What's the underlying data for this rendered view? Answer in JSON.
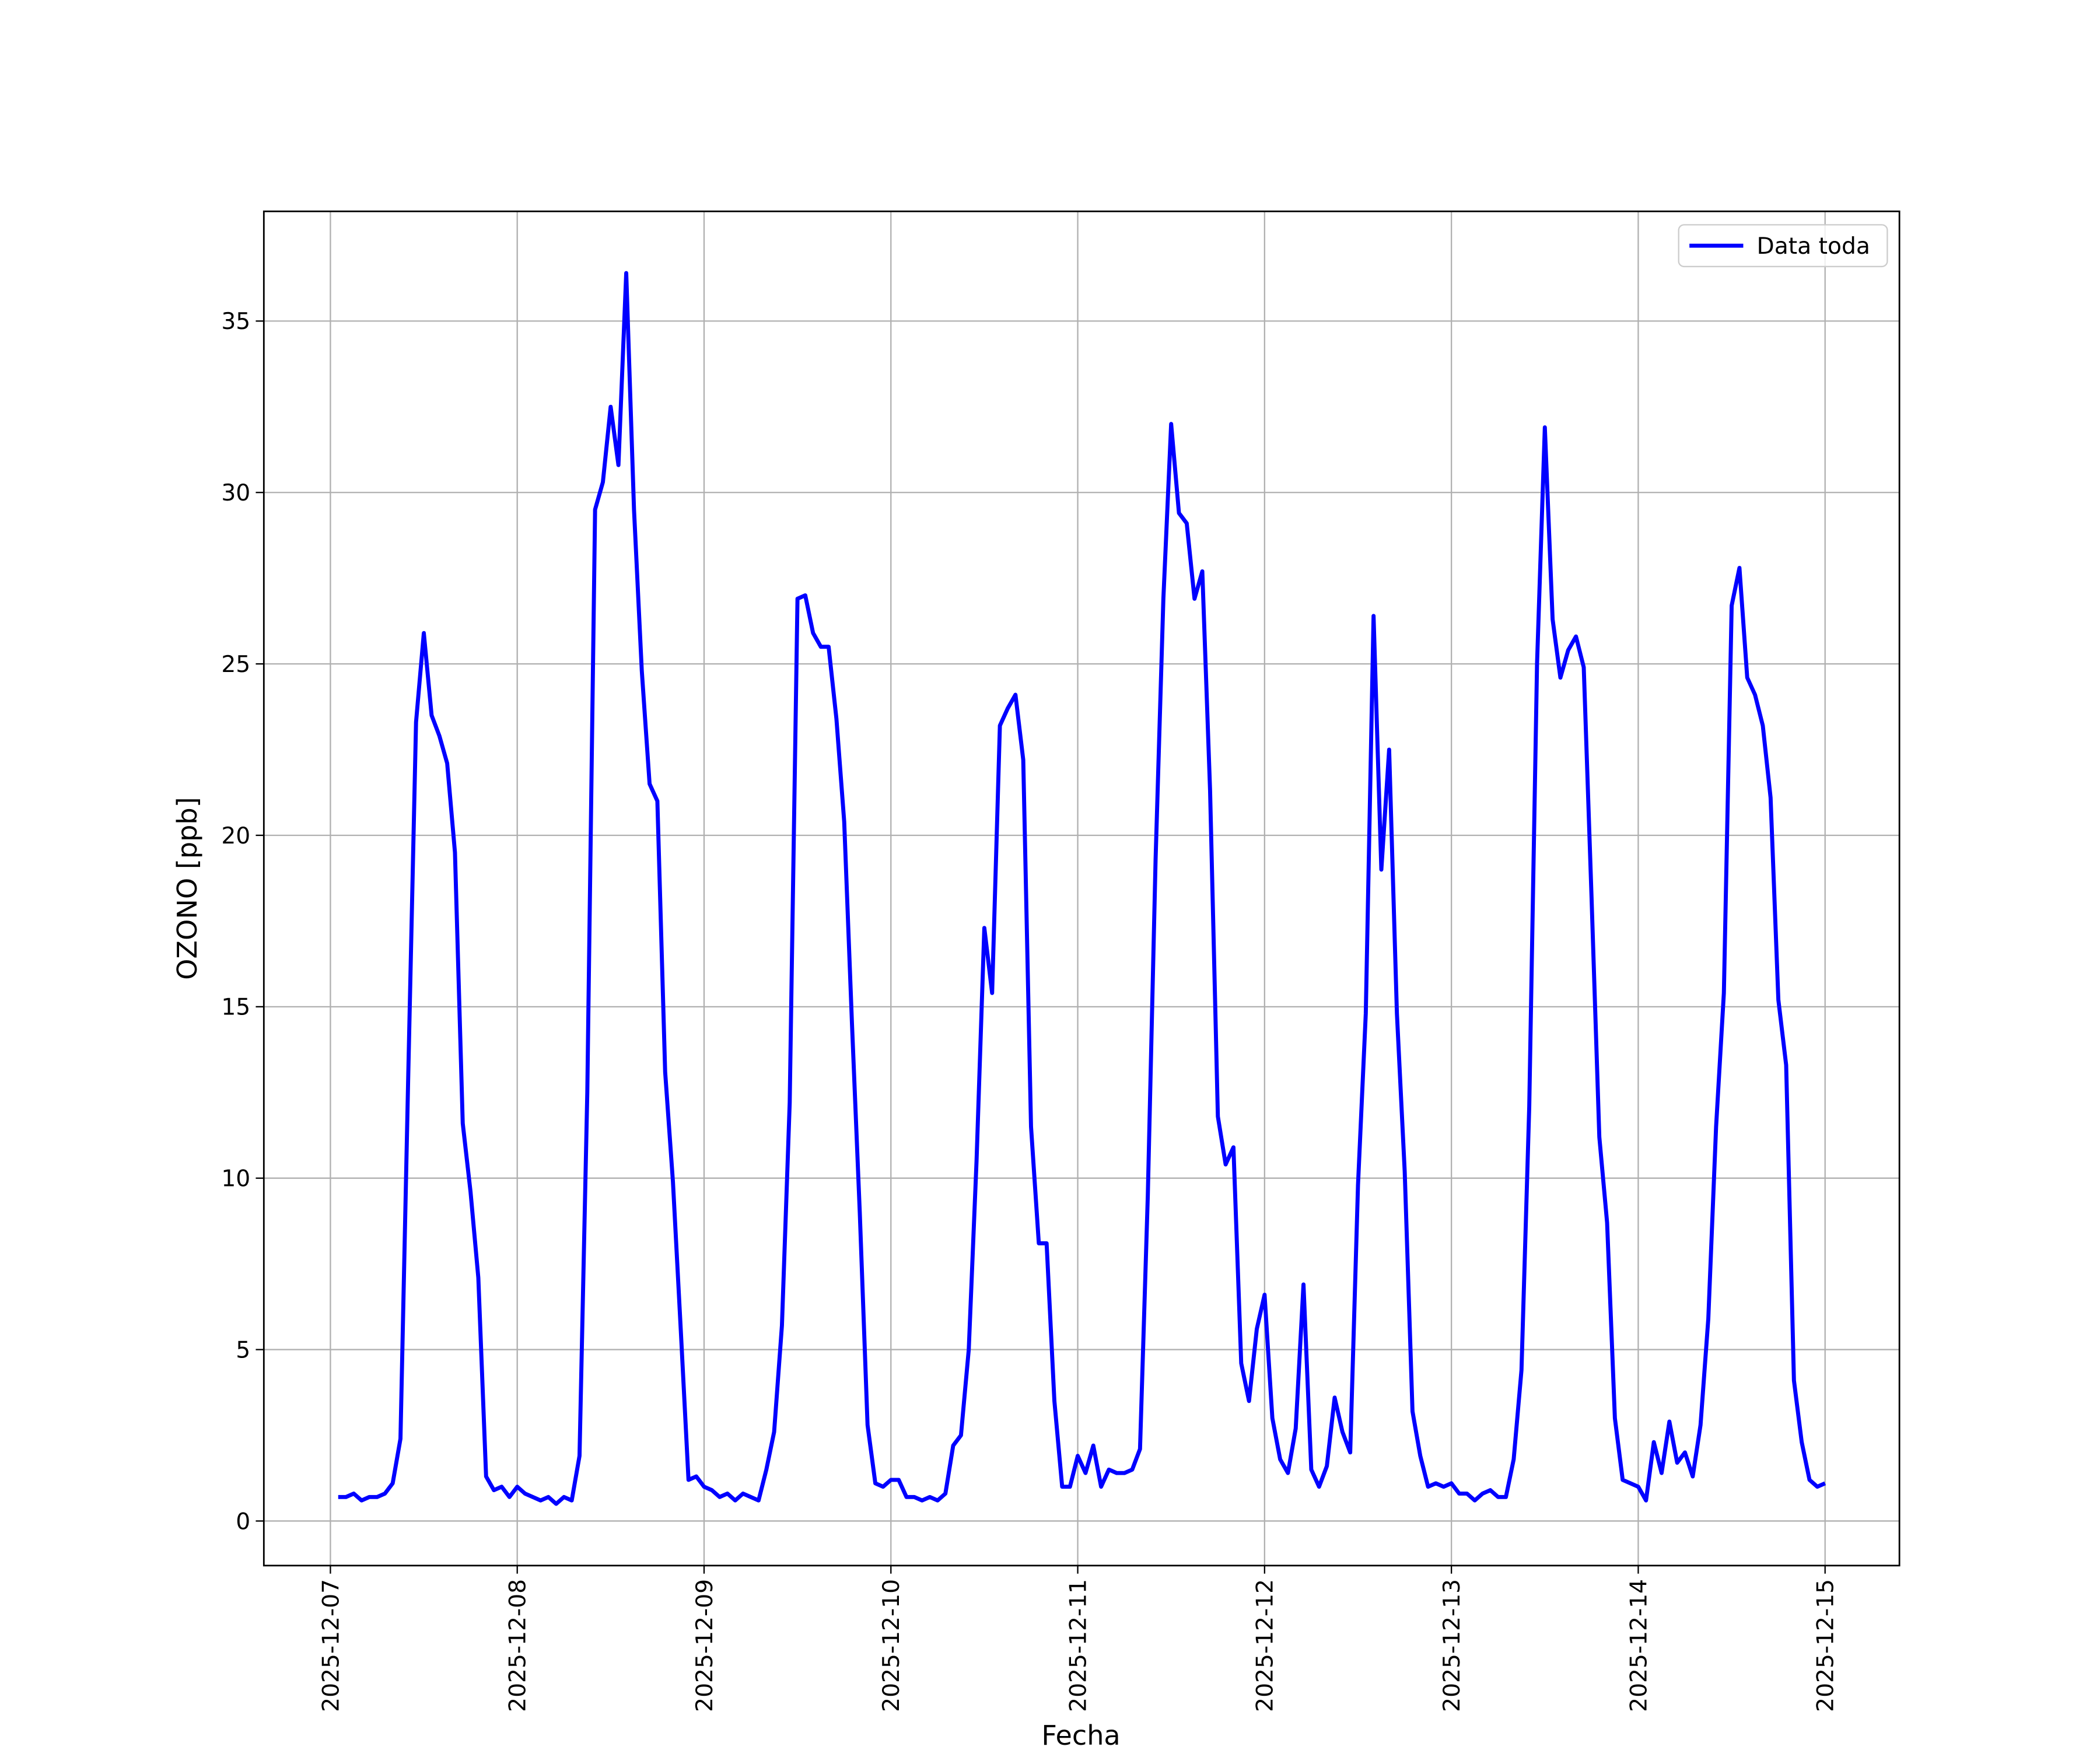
{
  "chart_data": {
    "type": "line",
    "xlabel": "Fecha",
    "ylabel": "OZONO [ppb]",
    "x": [
      "2025-12-07 01:00",
      "2025-12-07 02:00",
      "2025-12-07 03:00",
      "2025-12-07 04:00",
      "2025-12-07 05:00",
      "2025-12-07 06:00",
      "2025-12-07 07:00",
      "2025-12-07 08:00",
      "2025-12-07 09:00",
      "2025-12-07 10:00",
      "2025-12-07 11:00",
      "2025-12-07 12:00",
      "2025-12-07 13:00",
      "2025-12-07 14:00",
      "2025-12-07 15:00",
      "2025-12-07 16:00",
      "2025-12-07 17:00",
      "2025-12-07 18:00",
      "2025-12-07 19:00",
      "2025-12-07 20:00",
      "2025-12-07 21:00",
      "2025-12-07 22:00",
      "2025-12-07 23:00",
      "2025-12-08 00:00",
      "2025-12-08 01:00",
      "2025-12-08 02:00",
      "2025-12-08 03:00",
      "2025-12-08 04:00",
      "2025-12-08 05:00",
      "2025-12-08 06:00",
      "2025-12-08 07:00",
      "2025-12-08 08:00",
      "2025-12-08 09:00",
      "2025-12-08 10:00",
      "2025-12-08 11:00",
      "2025-12-08 12:00",
      "2025-12-08 13:00",
      "2025-12-08 14:00",
      "2025-12-08 15:00",
      "2025-12-08 16:00",
      "2025-12-08 17:00",
      "2025-12-08 18:00",
      "2025-12-08 19:00",
      "2025-12-08 20:00",
      "2025-12-08 21:00",
      "2025-12-08 22:00",
      "2025-12-08 23:00",
      "2025-12-09 00:00",
      "2025-12-09 01:00",
      "2025-12-09 02:00",
      "2025-12-09 03:00",
      "2025-12-09 04:00",
      "2025-12-09 05:00",
      "2025-12-09 06:00",
      "2025-12-09 07:00",
      "2025-12-09 08:00",
      "2025-12-09 09:00",
      "2025-12-09 10:00",
      "2025-12-09 11:00",
      "2025-12-09 12:00",
      "2025-12-09 13:00",
      "2025-12-09 14:00",
      "2025-12-09 15:00",
      "2025-12-09 16:00",
      "2025-12-09 17:00",
      "2025-12-09 18:00",
      "2025-12-09 19:00",
      "2025-12-09 20:00",
      "2025-12-09 21:00",
      "2025-12-09 22:00",
      "2025-12-09 23:00",
      "2025-12-10 00:00",
      "2025-12-10 01:00",
      "2025-12-10 02:00",
      "2025-12-10 03:00",
      "2025-12-10 04:00",
      "2025-12-10 05:00",
      "2025-12-10 06:00",
      "2025-12-10 07:00",
      "2025-12-10 08:00",
      "2025-12-10 09:00",
      "2025-12-10 10:00",
      "2025-12-10 11:00",
      "2025-12-10 12:00",
      "2025-12-10 13:00",
      "2025-12-10 14:00",
      "2025-12-10 15:00",
      "2025-12-10 16:00",
      "2025-12-10 17:00",
      "2025-12-10 18:00",
      "2025-12-10 19:00",
      "2025-12-10 20:00",
      "2025-12-10 21:00",
      "2025-12-10 22:00",
      "2025-12-10 23:00",
      "2025-12-11 00:00",
      "2025-12-11 01:00",
      "2025-12-11 02:00",
      "2025-12-11 03:00",
      "2025-12-11 04:00",
      "2025-12-11 05:00",
      "2025-12-11 06:00",
      "2025-12-11 07:00",
      "2025-12-11 08:00",
      "2025-12-11 09:00",
      "2025-12-11 10:00",
      "2025-12-11 11:00",
      "2025-12-11 12:00",
      "2025-12-11 13:00",
      "2025-12-11 14:00",
      "2025-12-11 15:00",
      "2025-12-11 16:00",
      "2025-12-11 17:00",
      "2025-12-11 18:00",
      "2025-12-11 19:00",
      "2025-12-11 20:00",
      "2025-12-11 21:00",
      "2025-12-11 22:00",
      "2025-12-11 23:00",
      "2025-12-12 00:00",
      "2025-12-12 01:00",
      "2025-12-12 02:00",
      "2025-12-12 03:00",
      "2025-12-12 04:00",
      "2025-12-12 05:00",
      "2025-12-12 06:00",
      "2025-12-12 07:00",
      "2025-12-12 08:00",
      "2025-12-12 09:00",
      "2025-12-12 10:00",
      "2025-12-12 11:00",
      "2025-12-12 12:00",
      "2025-12-12 13:00",
      "2025-12-12 14:00",
      "2025-12-12 15:00",
      "2025-12-12 16:00",
      "2025-12-12 17:00",
      "2025-12-12 18:00",
      "2025-12-12 19:00",
      "2025-12-12 20:00",
      "2025-12-12 21:00",
      "2025-12-12 22:00",
      "2025-12-12 23:00",
      "2025-12-13 00:00",
      "2025-12-13 01:00",
      "2025-12-13 02:00",
      "2025-12-13 03:00",
      "2025-12-13 04:00",
      "2025-12-13 05:00",
      "2025-12-13 06:00",
      "2025-12-13 07:00",
      "2025-12-13 08:00",
      "2025-12-13 09:00",
      "2025-12-13 10:00",
      "2025-12-13 11:00",
      "2025-12-13 12:00",
      "2025-12-13 13:00",
      "2025-12-13 14:00",
      "2025-12-13 15:00",
      "2025-12-13 16:00",
      "2025-12-13 17:00",
      "2025-12-13 18:00",
      "2025-12-13 19:00",
      "2025-12-13 20:00",
      "2025-12-13 21:00",
      "2025-12-13 22:00",
      "2025-12-13 23:00",
      "2025-12-14 00:00",
      "2025-12-14 01:00",
      "2025-12-14 02:00",
      "2025-12-14 03:00",
      "2025-12-14 04:00",
      "2025-12-14 05:00",
      "2025-12-14 06:00",
      "2025-12-14 07:00",
      "2025-12-14 08:00",
      "2025-12-14 09:00",
      "2025-12-14 10:00",
      "2025-12-14 11:00",
      "2025-12-14 12:00",
      "2025-12-14 13:00",
      "2025-12-14 14:00",
      "2025-12-14 15:00",
      "2025-12-14 16:00",
      "2025-12-14 17:00",
      "2025-12-14 18:00",
      "2025-12-14 19:00",
      "2025-12-14 20:00",
      "2025-12-14 21:00",
      "2025-12-14 22:00",
      "2025-12-14 23:00",
      "2025-12-15 00:00"
    ],
    "series": [
      {
        "name": "Data toda",
        "color": "#0000ff",
        "values": [
          0.7,
          0.7,
          0.8,
          0.6,
          0.7,
          0.7,
          0.8,
          1.1,
          2.4,
          13,
          23.3,
          25.9,
          23.5,
          22.9,
          22.1,
          19.5,
          11.6,
          9.6,
          7.1,
          1.3,
          0.9,
          1.0,
          0.7,
          1.0,
          0.8,
          0.7,
          0.6,
          0.7,
          0.5,
          0.7,
          0.6,
          1.9,
          12.5,
          29.5,
          30.3,
          32.5,
          30.8,
          36.4,
          29.5,
          24.8,
          21.5,
          21.0,
          13.1,
          9.9,
          5.6,
          1.2,
          1.3,
          1.0,
          0.9,
          0.7,
          0.8,
          0.6,
          0.8,
          0.7,
          0.6,
          1.5,
          2.6,
          5.7,
          12.2,
          26.9,
          27.0,
          25.9,
          25.5,
          25.5,
          23.4,
          20.4,
          14.5,
          9.0,
          2.8,
          1.1,
          1.0,
          1.2,
          1.2,
          0.7,
          0.7,
          0.6,
          0.7,
          0.6,
          0.8,
          2.2,
          2.5,
          5.0,
          10.5,
          17.3,
          15.4,
          23.2,
          23.7,
          24.1,
          22.2,
          11.5,
          8.1,
          8.1,
          3.5,
          1.0,
          1.0,
          1.9,
          1.4,
          2.2,
          1.0,
          1.5,
          1.4,
          1.4,
          1.5,
          2.1,
          9.5,
          19.3,
          26.9,
          32.0,
          29.4,
          29.1,
          26.9,
          27.7,
          21.3,
          11.8,
          10.4,
          10.9,
          4.6,
          3.5,
          5.6,
          6.6,
          3.0,
          1.8,
          1.4,
          2.7,
          6.9,
          1.5,
          1.0,
          1.6,
          3.6,
          2.6,
          2.0,
          9.8,
          14.8,
          26.4,
          19.0,
          22.5,
          14.8,
          10.2,
          3.2,
          1.9,
          1.0,
          1.1,
          1.0,
          1.1,
          0.8,
          0.8,
          0.6,
          0.8,
          0.9,
          0.7,
          0.7,
          1.8,
          4.4,
          12.1,
          25.0,
          31.9,
          26.3,
          24.6,
          25.4,
          25.8,
          24.9,
          18.2,
          11.2,
          8.7,
          3.0,
          1.2,
          1.1,
          1.0,
          0.6,
          2.3,
          1.4,
          2.9,
          1.7,
          2.0,
          1.3,
          2.8,
          5.9,
          11.5,
          15.4,
          26.7,
          27.8,
          24.6,
          24.1,
          23.2,
          21.1,
          15.2,
          13.3,
          4.1,
          2.3,
          1.2,
          1.0,
          1.1
        ]
      }
    ],
    "xlim": [
      "2025-12-06 15:27",
      "2025-12-15 09:33"
    ],
    "xticks": [
      "2025-12-07",
      "2025-12-08",
      "2025-12-09",
      "2025-12-10",
      "2025-12-11",
      "2025-12-12",
      "2025-12-13",
      "2025-12-14",
      "2025-12-15"
    ],
    "ylim": [
      -1.3,
      38.2
    ],
    "yticks": [
      0,
      5,
      10,
      15,
      20,
      25,
      30,
      35
    ],
    "grid": true,
    "legend": "upper right"
  }
}
